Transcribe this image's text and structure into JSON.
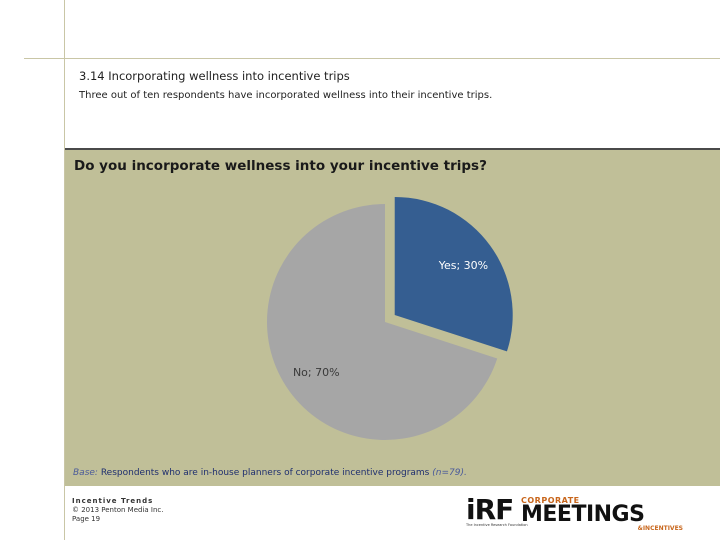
{
  "header": {
    "title": "3.14 Incorporating wellness into incentive trips",
    "subtitle": "Three out of ten respondents have incorporated wellness into their incentive trips."
  },
  "chart_data": {
    "type": "pie",
    "title": "Do you incorporate wellness into your incentive trips?",
    "slices": [
      {
        "label": "Yes",
        "value": 30,
        "display": "Yes; 30%",
        "color": "#355e91",
        "exploded": true
      },
      {
        "label": "No",
        "value": 70,
        "display": "No; 70%",
        "color": "#a6a6a6",
        "exploded": false
      }
    ]
  },
  "base_note": {
    "label": "Base:",
    "text": " Respondents who are in-house planners of corporate incentive programs ",
    "n": "(n=79)."
  },
  "footer": {
    "brand": "Incentive Trends",
    "copyright": "© 2013 Penton Media Inc.",
    "page": "Page 19"
  },
  "logos": {
    "irf": {
      "letters": "iRF",
      "tagline": "The Incentive Research Foundation"
    },
    "cmi": {
      "top": "CORPORATE",
      "main": "MEETINGS",
      "bottom": "&INCENTIVES"
    }
  }
}
